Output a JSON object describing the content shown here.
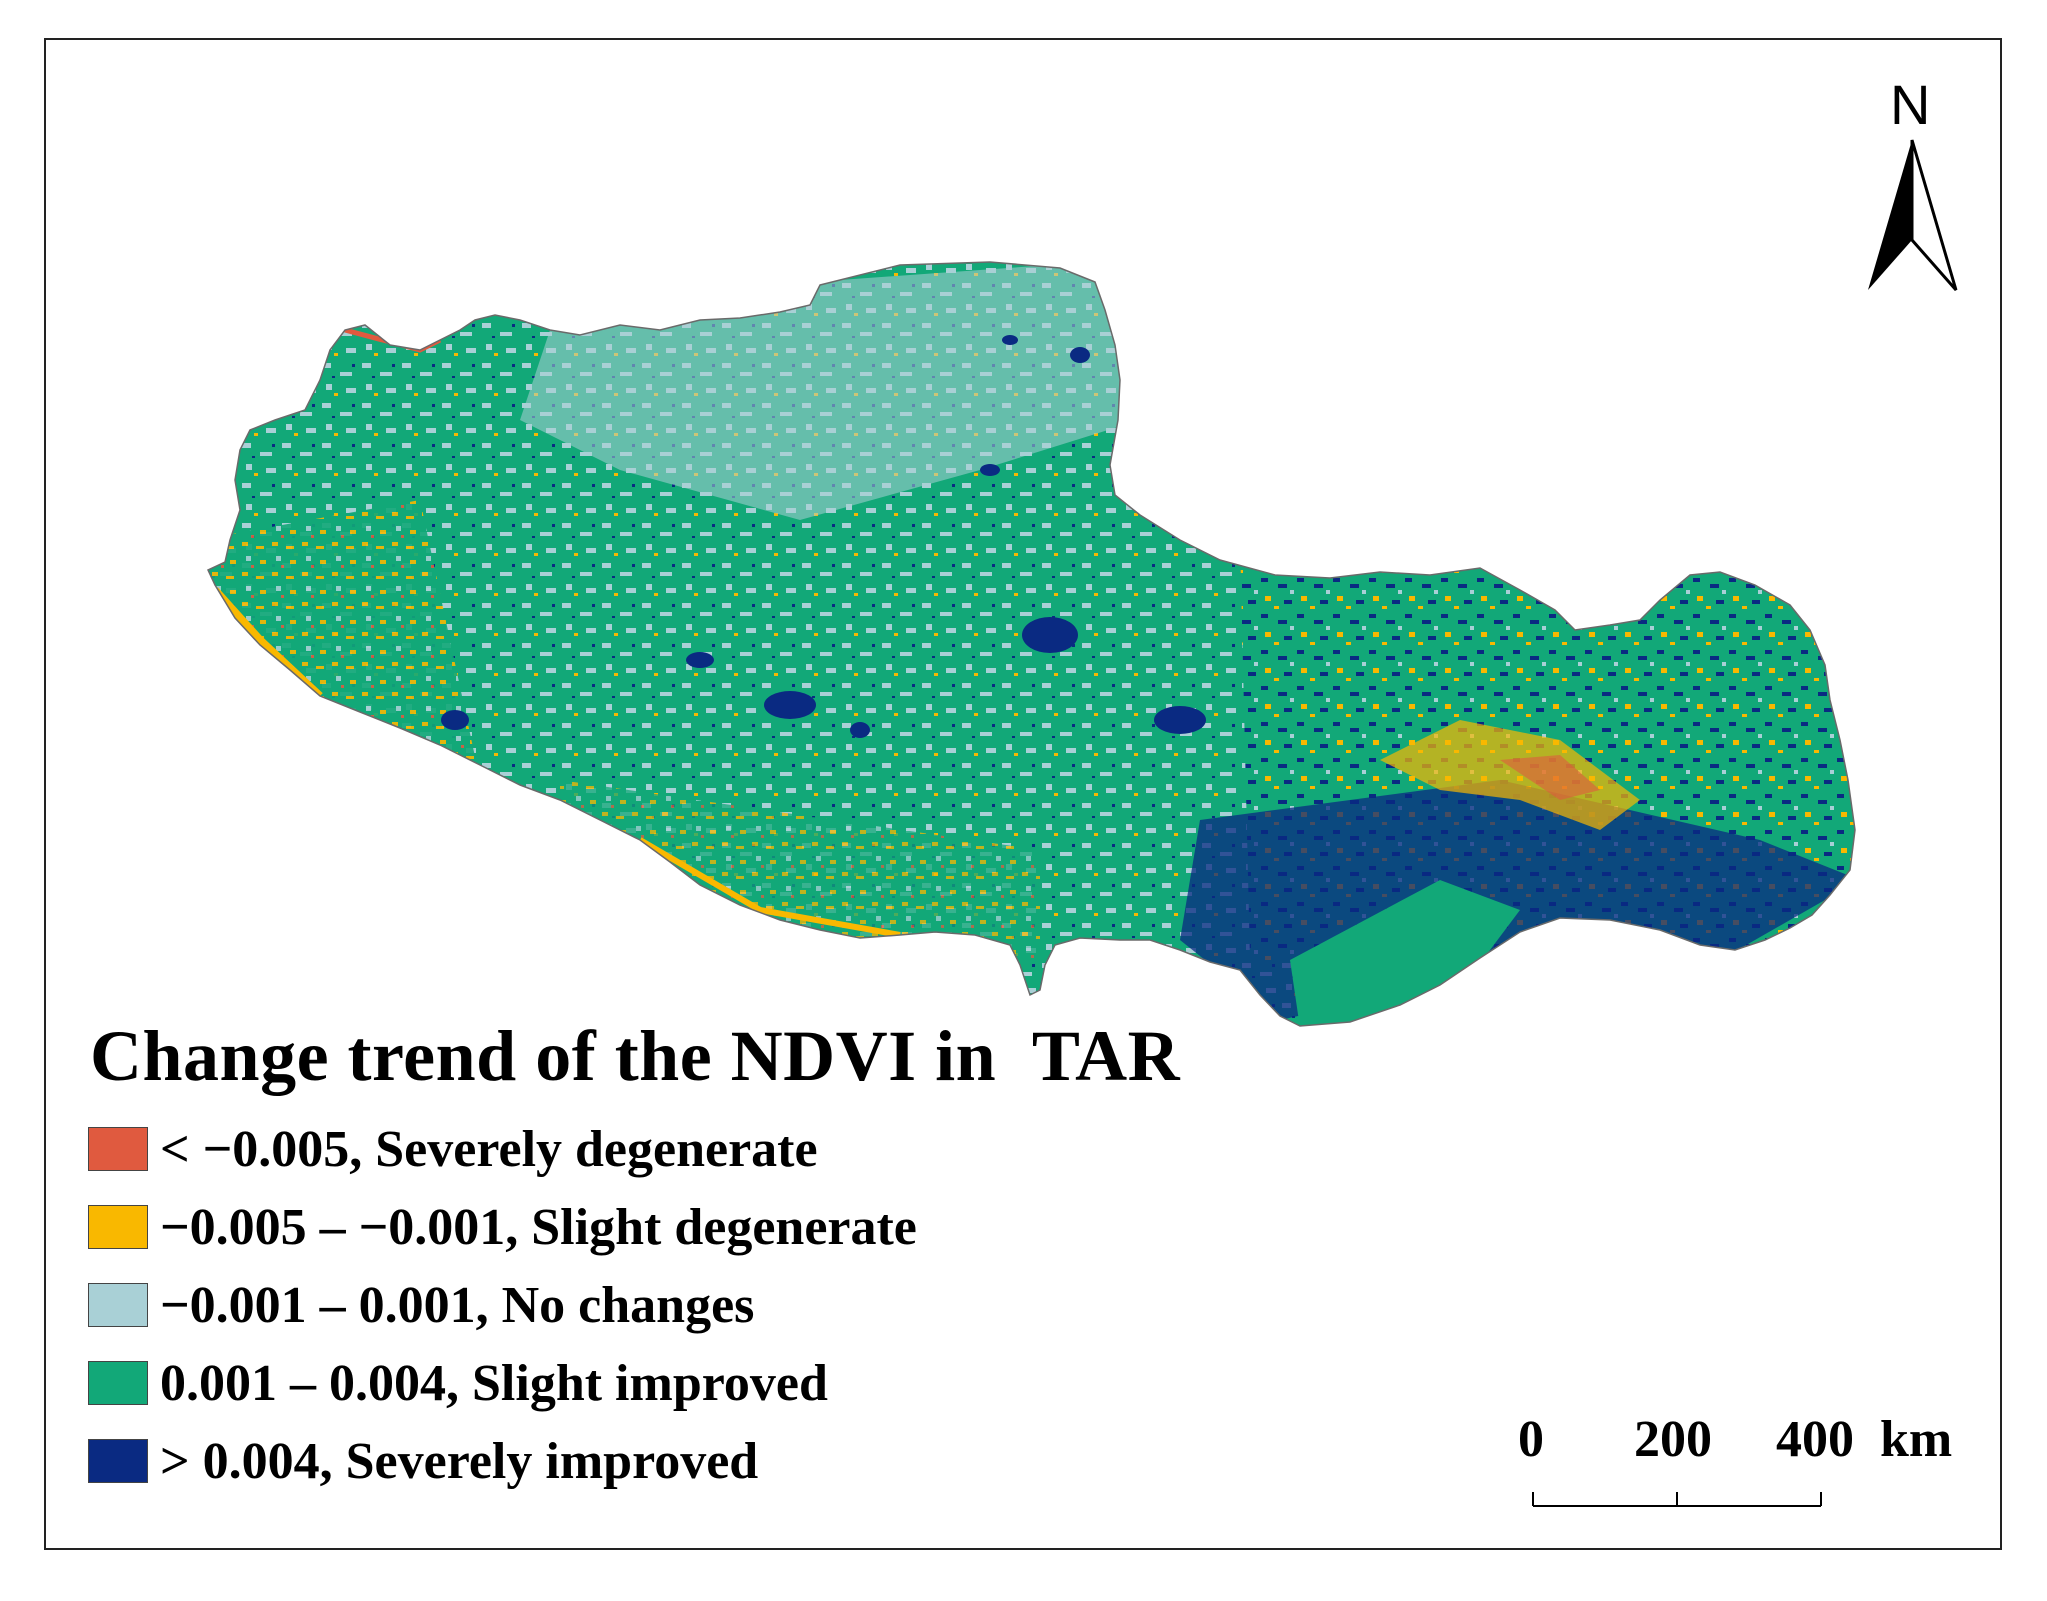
{
  "legend": {
    "title": "Change trend of the NDVI in  TAR",
    "items": [
      {
        "label": "< −0.005, Severely degenerate",
        "color": "#e05a3f"
      },
      {
        "label": "−0.005 – −0.001, Slight degenerate",
        "color": "#f9b800"
      },
      {
        "label": "−0.001 – 0.001, No changes",
        "color": "#a9d0d6"
      },
      {
        "label": "0.001 – 0.004, Slight improved",
        "color": "#12a878"
      },
      {
        "label": "> 0.004, Severely improved",
        "color": "#0a2a82"
      }
    ]
  },
  "north_arrow": {
    "label": "N"
  },
  "scale_bar": {
    "ticks": [
      "0",
      "200",
      "400"
    ],
    "unit": "km"
  },
  "colors": {
    "frame": "#222222",
    "severely_degenerate": "#e05a3f",
    "slight_degenerate": "#f9b800",
    "no_changes": "#a9d0d6",
    "slight_improved": "#12a878",
    "severely_improved": "#0a2a82"
  }
}
